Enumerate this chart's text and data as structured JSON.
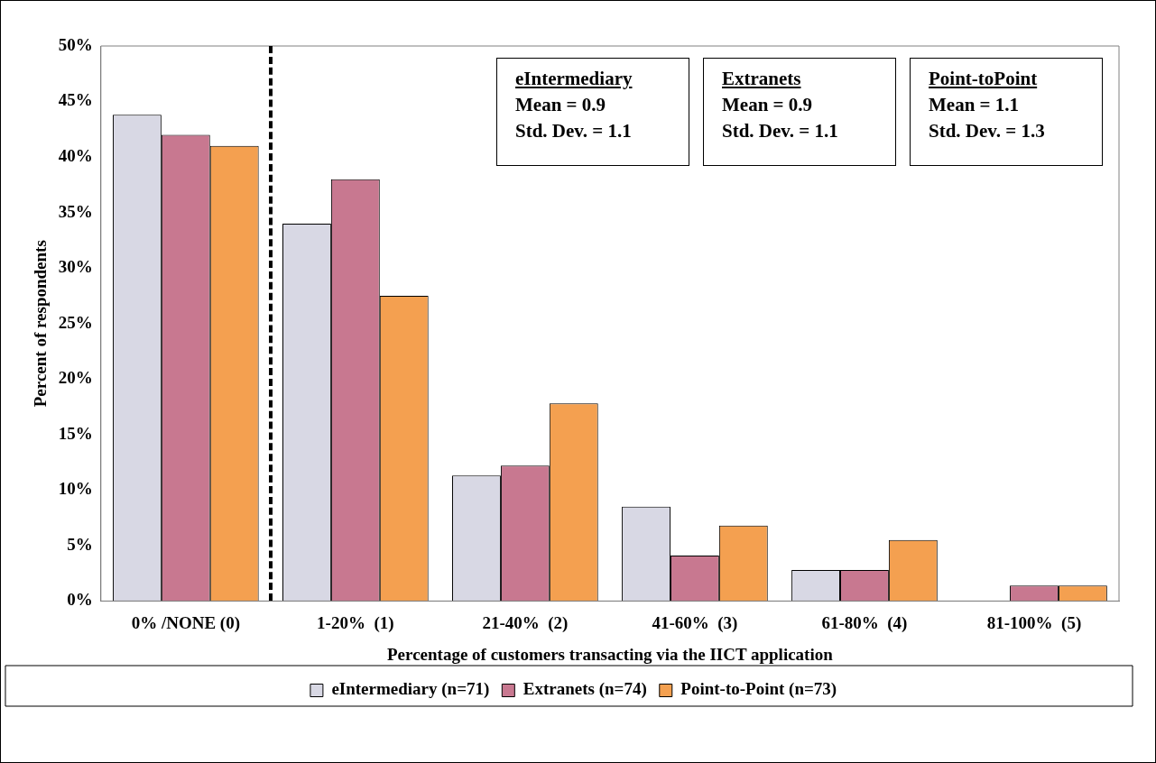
{
  "chart_data": {
    "type": "bar",
    "xlabel": "Percentage of customers transacting via the IICT application",
    "ylabel": "Percent of respondents",
    "categories": [
      "0% /NONE (0)",
      "1-20%  (1)",
      "21-40%  (2)",
      "41-60%  (3)",
      "61-80%  (4)",
      "81-100%  (5)"
    ],
    "series": [
      {
        "name": "eIntermediary (n=71)",
        "color": "#d8d8e4",
        "values": [
          43.8,
          34,
          11.3,
          8.5,
          2.8,
          0
        ]
      },
      {
        "name": "Extranets (n=74)",
        "color": "#c87890",
        "values": [
          42,
          38,
          12.2,
          4.1,
          2.8,
          1.4
        ]
      },
      {
        "name": "Point-to-Point (n=73)",
        "color": "#f4a050",
        "values": [
          41,
          27.5,
          17.8,
          6.8,
          5.5,
          1.4
        ]
      }
    ],
    "ylim": [
      0,
      50
    ],
    "yticks": [
      {
        "value": 0,
        "label": "0%"
      },
      {
        "value": 5,
        "label": "5%"
      },
      {
        "value": 10,
        "label": "10%"
      },
      {
        "value": 15,
        "label": "15%"
      },
      {
        "value": 20,
        "label": "20%"
      },
      {
        "value": 25,
        "label": "25%"
      },
      {
        "value": 30,
        "label": "30%"
      },
      {
        "value": 35,
        "label": "35%"
      },
      {
        "value": 40,
        "label": "40%"
      },
      {
        "value": 45,
        "label": "45%"
      },
      {
        "value": 50,
        "label": "50%"
      }
    ],
    "grid": false,
    "legend": "bottom",
    "annotations": [
      "eIntermediary\nMean = 0.9\nStd. Dev. = 1.1",
      "Extranets\nMean = 0.9\nStd. Dev. = 1.1",
      "Point-toPoint\nMean = 1.1\nStd. Dev. = 1.3"
    ]
  }
}
